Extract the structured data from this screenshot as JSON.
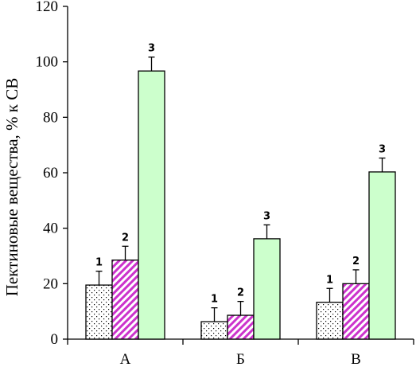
{
  "chart_data": {
    "type": "bar",
    "ylabel": "Пектиновые вещества, % к СВ",
    "xlabel": "",
    "ylim": [
      0,
      120
    ],
    "yticks": [
      "0",
      "20",
      "40",
      "60",
      "80",
      "100",
      "120"
    ],
    "categories": [
      "А",
      "Б",
      "В"
    ],
    "grid": false,
    "series": [
      {
        "label": "1",
        "pattern": "dots",
        "fill": "#ffffff",
        "pattern_color": "#000000",
        "values": [
          19.5,
          6.3,
          13.3
        ],
        "errors": [
          5.0,
          5.0,
          5.0
        ]
      },
      {
        "label": "2",
        "pattern": "diagonal-hatch",
        "fill": "#ffffff",
        "pattern_color": "#cc33cc",
        "values": [
          28.5,
          8.6,
          20.0
        ],
        "errors": [
          5.0,
          5.0,
          5.0
        ]
      },
      {
        "label": "3",
        "pattern": "solid",
        "fill": "#ccffcc",
        "values": [
          96.7,
          36.2,
          60.3
        ],
        "errors": [
          5.0,
          5.0,
          5.0
        ]
      }
    ]
  }
}
